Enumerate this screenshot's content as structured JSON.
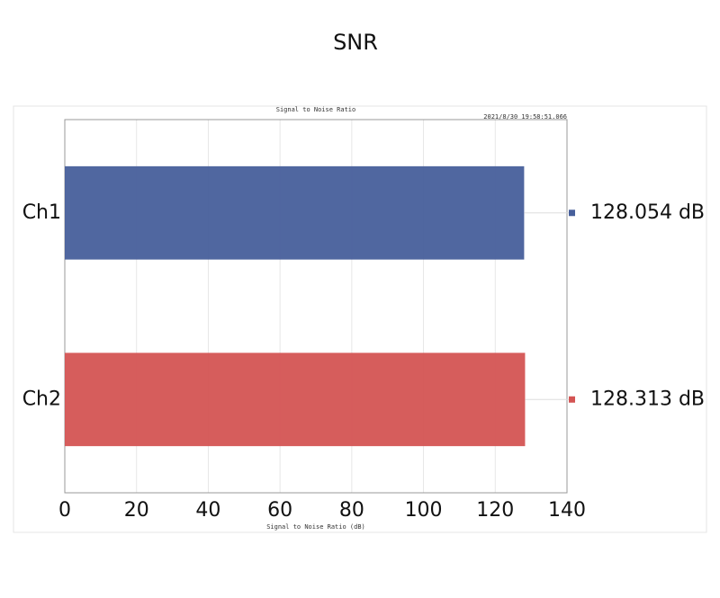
{
  "chart_data": {
    "type": "hbar",
    "title": "SNR",
    "subtitle": "Signal to Noise Ratio",
    "timestamp": "2021/8/30 19:58:51.066",
    "x_label": "Signal to Noise Ratio (dB)",
    "categories": [
      "Ch1",
      "Ch2"
    ],
    "values": [
      128.054,
      128.313
    ],
    "value_labels": [
      "128.054 dB",
      "128.313 dB"
    ],
    "colors": [
      "#475f9b",
      "#d45453"
    ],
    "xlim": [
      0,
      140
    ],
    "xticks": [
      0,
      20,
      40,
      60,
      80,
      100,
      120,
      140
    ],
    "grid": true
  }
}
